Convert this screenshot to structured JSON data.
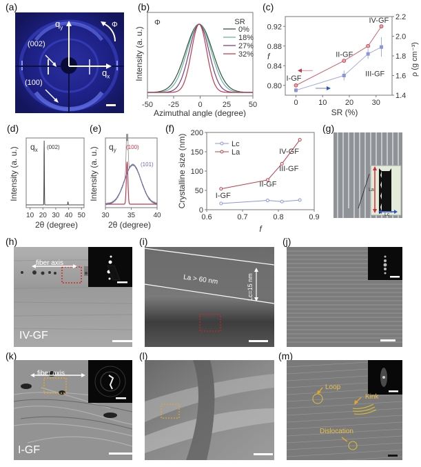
{
  "panel_labels": [
    "(a)",
    "(b)",
    "(c)",
    "(d)",
    "(e)",
    "(f)",
    "(g)",
    "(h)",
    "(i)",
    "(j)",
    "(k)",
    "(l)",
    "(m)"
  ],
  "panel_a": {
    "qx": "q",
    "qx_sub": "x",
    "qy": "q",
    "qy_sub": "y",
    "phi": "Φ",
    "peak_002": "(002)",
    "peak_100": "(100)"
  },
  "panel_g": {
    "la": "La",
    "lc": "Lc"
  },
  "panel_h": {
    "fiber_axis": "fiber axis",
    "sample": "IV-GF"
  },
  "panel_i": {
    "la_text": "La > 60 nm",
    "lc_text": "Lc=15 nm"
  },
  "panel_k": {
    "fiber_axis": "fiber axis",
    "sample": "I-GF"
  },
  "panel_m": {
    "loop": "Loop",
    "kink": "Kink",
    "dislocation": "Dislocation"
  },
  "chart_data": [
    {
      "id": "b",
      "type": "line",
      "title": "",
      "annotation": "Φ",
      "xlabel": "Azimuthal angle (degree)",
      "ylabel": "Intensity (a. u.)",
      "xlim": [
        -50,
        50
      ],
      "xticks": [
        -50,
        -25,
        0,
        25,
        50
      ],
      "legend_title": "SR",
      "legend_position": "upper right",
      "series": [
        {
          "name": "0%",
          "color": "#2f4f3f",
          "center": -1,
          "fwhm": 30
        },
        {
          "name": "18%",
          "color": "#5fb89a",
          "center": -1,
          "fwhm": 27
        },
        {
          "name": "27%",
          "color": "#7a3a7a",
          "center": -1,
          "fwhm": 22
        },
        {
          "name": "32%",
          "color": "#c0394a",
          "center": -1,
          "fwhm": 17
        }
      ]
    },
    {
      "id": "c",
      "type": "line",
      "xlabel": "SR (%)",
      "ylabel": "f",
      "ylabel_right": "ρ (g cm⁻³)",
      "xlim": [
        -4,
        36
      ],
      "xticks": [
        0,
        10,
        20,
        30
      ],
      "ylim": [
        0.78,
        0.94
      ],
      "yticks": [
        0.8,
        0.84,
        0.88,
        0.92
      ],
      "ylim_right": [
        1.4,
        2.2
      ],
      "yticks_right": [
        1.4,
        1.6,
        1.8,
        2.0,
        2.2
      ],
      "x": [
        0,
        18,
        27,
        32
      ],
      "series": [
        {
          "name": "f",
          "axis": "left",
          "color": "#c0394a",
          "values": [
            0.8,
            0.85,
            0.88,
            0.92
          ]
        },
        {
          "name": "ρ",
          "axis": "right",
          "color": "#8a96d8",
          "values": [
            1.45,
            1.6,
            1.82,
            1.89
          ],
          "errors": [
            0.02,
            0.05,
            0.05,
            0.1
          ]
        }
      ],
      "point_labels": [
        "I-GF",
        "II-GF",
        "III-GF",
        "IV-GF"
      ]
    },
    {
      "id": "d",
      "type": "line",
      "annotation": "qx",
      "xlabel": "2θ (degree)",
      "ylabel": "Intensity (a. u.)",
      "xlim": [
        7,
        52
      ],
      "xticks": [
        10,
        20,
        30,
        40,
        50
      ],
      "peaks": [
        {
          "x": 21,
          "label": "(002)",
          "height": 1.0
        },
        {
          "x": 39.5,
          "height": 0.05
        }
      ]
    },
    {
      "id": "e",
      "type": "line",
      "annotation": "qy",
      "xlabel": "2θ (degree)",
      "ylabel": "Intensity (a. u.)",
      "xlim": [
        30,
        40
      ],
      "xticks": [
        30,
        35,
        40
      ],
      "series": [
        {
          "name": "(100)",
          "color": "#c0394a",
          "center": 34.2,
          "height": 0.67,
          "width": 0.3
        },
        {
          "name": "(101)",
          "color": "#6a6aa8",
          "center": 35.3,
          "height": 0.62,
          "width": 1.6
        }
      ]
    },
    {
      "id": "f",
      "type": "line",
      "xlabel": "f",
      "ylabel": "Crystalline size (nm)",
      "xlim": [
        0.6,
        0.9
      ],
      "xticks": [
        0.6,
        0.7,
        0.8,
        0.9
      ],
      "ylim": [
        0,
        200
      ],
      "yticks": [
        0,
        50,
        100,
        150,
        200
      ],
      "x": [
        0.64,
        0.77,
        0.81,
        0.86
      ],
      "legend_position": "upper left",
      "series": [
        {
          "name": "Lc",
          "color": "#8a96d8",
          "values": [
            16,
            24,
            21,
            25
          ]
        },
        {
          "name": "La",
          "color": "#c0394a",
          "values": [
            54,
            77,
            119,
            181
          ]
        }
      ],
      "point_labels": [
        "I-GF",
        "II-GF",
        "III-GF",
        "IV-GF"
      ]
    }
  ]
}
